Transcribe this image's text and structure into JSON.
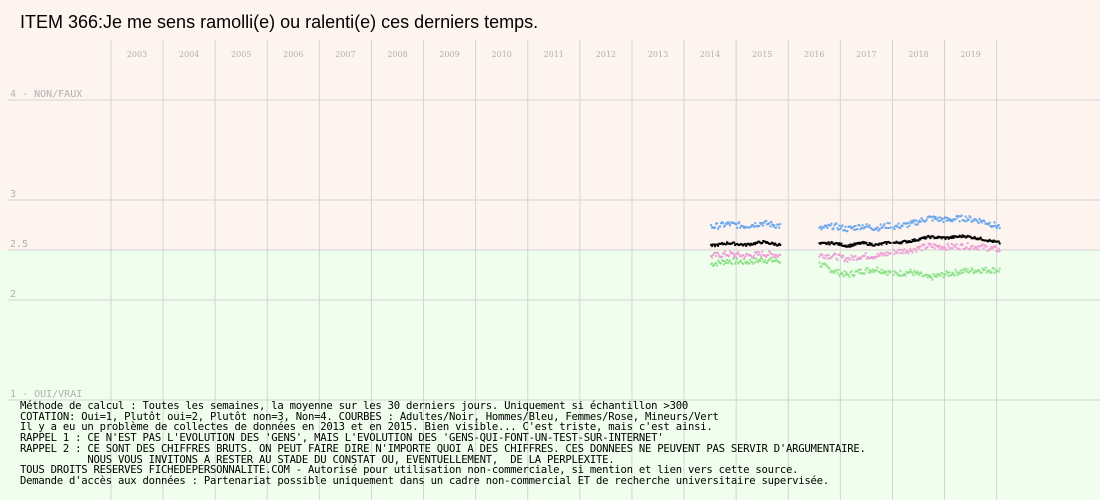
{
  "title": "ITEM 366:Je me sens ramolli(e) ou ralenti(e) ces derniers temps.",
  "colors": {
    "background_top": "#fdf4ef",
    "background_bottom": "#f0ffed",
    "grid": "#d3d3d3",
    "axis_text": "#b0b0b0",
    "adultes": "#000000",
    "hommes": "#6aa6ee",
    "femmes": "#ee9fd6",
    "mineurs": "#8fe08a"
  },
  "notes": [
    "Méthode de calcul : Toutes les semaines, la moyenne sur les 30 derniers jours. Uniquement si échantillon >300",
    "COTATION: Oui=1, Plutôt oui=2, Plutôt non=3, Non=4. COURBES : Adultes/Noir, Hommes/Bleu, Femmes/Rose, Mineurs/Vert",
    "Il y a eu un problème de collectes de données en 2013 et en 2015. Bien visible... C'est triste, mais c'est ainsi.",
    "RAPPEL 1 : CE N'EST PAS L'EVOLUTION DES 'GENS', MAIS L'EVOLUTION DES 'GENS-QUI-FONT-UN-TEST-SUR-INTERNET'",
    "RAPPEL 2 : CE SONT DES CHIFFRES BRUTS. ON PEUT FAIRE DIRE N'IMPORTE QUOI A DES CHIFFRES. CES DONNEES NE PEUVENT PAS SERVIR D'ARGUMENTAIRE.",
    "           NOUS VOUS INVITONS A RESTER AU STADE DU CONSTAT OU, EVENTUELLEMENT,  DE LA PERPLEXITE.",
    "TOUS DROITS RESERVES FICHEDEPERSONNALITE.COM - Autorisé pour utilisation non-commerciale, si mention et lien vers cette source.",
    "Demande d'accès aux données : Partenariat possible uniquement dans un cadre non-commercial ET de recherche universitaire supervisée."
  ],
  "chart_data": {
    "type": "scatter",
    "x_ticks": [
      "2003",
      "2004",
      "2005",
      "2006",
      "2007",
      "2008",
      "2009",
      "2010",
      "2011",
      "2012",
      "2013",
      "2014",
      "2015",
      "2016",
      "2017",
      "2018",
      "2019"
    ],
    "y_ticks": [
      {
        "value": 4,
        "label": "4 - NON/FAUX"
      },
      {
        "value": 3,
        "label": "3"
      },
      {
        "value": 2.5,
        "label": "2.5"
      },
      {
        "value": 2,
        "label": "2"
      },
      {
        "value": 1,
        "label": "1 - OUI/VRAI"
      }
    ],
    "xlim": [
      2002.5,
      2019.95
    ],
    "ylim": [
      1,
      4
    ],
    "grid": true,
    "segments": [
      [
        2014.85,
        2015.95
      ],
      [
        2016.08,
        2017.45
      ],
      [
        2017.5,
        2019.55
      ]
    ],
    "series": [
      {
        "name": "Adultes",
        "color": "#000000",
        "segment_points": [
          [
            [
              2014.0,
              2.54
            ],
            [
              2014.33,
              2.57
            ],
            [
              2014.66,
              2.55
            ],
            [
              2014.99,
              2.58
            ],
            [
              2015.33,
              2.55
            ]
          ],
          [
            [
              2016.08,
              2.56
            ],
            [
              2016.35,
              2.57
            ],
            [
              2016.62,
              2.54
            ],
            [
              2016.9,
              2.57
            ],
            [
              2017.18,
              2.55
            ],
            [
              2017.45,
              2.58
            ]
          ],
          [
            [
              2017.5,
              2.57
            ],
            [
              2017.84,
              2.59
            ],
            [
              2018.18,
              2.63
            ],
            [
              2018.52,
              2.62
            ],
            [
              2018.86,
              2.64
            ],
            [
              2019.2,
              2.61
            ],
            [
              2019.55,
              2.57
            ]
          ]
        ]
      },
      {
        "name": "Hommes",
        "color": "#6aa6ee",
        "segment_points": [
          [
            [
              2014.0,
              2.73
            ],
            [
              2014.33,
              2.76
            ],
            [
              2014.66,
              2.74
            ],
            [
              2014.99,
              2.77
            ],
            [
              2015.33,
              2.74
            ]
          ],
          [
            [
              2016.08,
              2.71
            ],
            [
              2016.35,
              2.74
            ],
            [
              2016.62,
              2.71
            ],
            [
              2016.9,
              2.74
            ],
            [
              2017.18,
              2.72
            ],
            [
              2017.45,
              2.75
            ]
          ],
          [
            [
              2017.5,
              2.73
            ],
            [
              2017.84,
              2.76
            ],
            [
              2018.18,
              2.82
            ],
            [
              2018.52,
              2.8
            ],
            [
              2018.86,
              2.82
            ],
            [
              2019.2,
              2.79
            ],
            [
              2019.55,
              2.73
            ]
          ]
        ]
      },
      {
        "name": "Femmes",
        "color": "#ee9fd6",
        "segment_points": [
          [
            [
              2014.0,
              2.44
            ],
            [
              2014.33,
              2.46
            ],
            [
              2014.66,
              2.44
            ],
            [
              2014.99,
              2.46
            ],
            [
              2015.33,
              2.45
            ]
          ],
          [
            [
              2016.08,
              2.45
            ],
            [
              2016.35,
              2.44
            ],
            [
              2016.62,
              2.41
            ],
            [
              2016.9,
              2.44
            ],
            [
              2017.18,
              2.44
            ],
            [
              2017.45,
              2.47
            ]
          ],
          [
            [
              2017.5,
              2.48
            ],
            [
              2017.84,
              2.5
            ],
            [
              2018.18,
              2.54
            ],
            [
              2018.52,
              2.53
            ],
            [
              2018.86,
              2.54
            ],
            [
              2019.2,
              2.53
            ],
            [
              2019.55,
              2.5
            ]
          ]
        ]
      },
      {
        "name": "Mineurs",
        "color": "#8fe08a",
        "segment_points": [
          [
            [
              2014.0,
              2.36
            ],
            [
              2014.33,
              2.39
            ],
            [
              2014.66,
              2.38
            ],
            [
              2014.99,
              2.4
            ],
            [
              2015.33,
              2.39
            ]
          ],
          [
            [
              2016.08,
              2.36
            ],
            [
              2016.35,
              2.29
            ],
            [
              2016.62,
              2.25
            ],
            [
              2016.9,
              2.29
            ],
            [
              2017.18,
              2.31
            ],
            [
              2017.45,
              2.27
            ]
          ],
          [
            [
              2017.5,
              2.26
            ],
            [
              2017.84,
              2.28
            ],
            [
              2018.18,
              2.22
            ],
            [
              2018.52,
              2.26
            ],
            [
              2018.86,
              2.29
            ],
            [
              2019.2,
              2.3
            ],
            [
              2019.55,
              2.3
            ]
          ]
        ]
      }
    ]
  }
}
